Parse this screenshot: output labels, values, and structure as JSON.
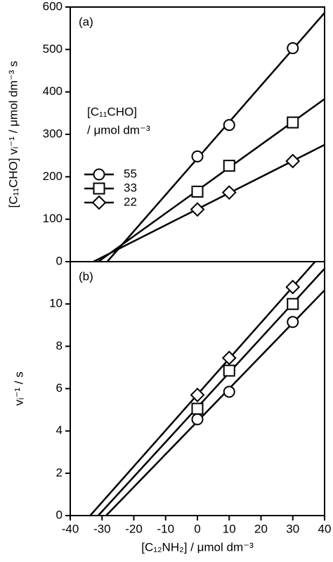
{
  "chart_data": [
    {
      "type": "scatter",
      "panel_label": "(a)",
      "ylabel": "[C₁₁CHO] vᵢ⁻¹ / μmol dm⁻³ s",
      "legend_title": "[C₁₁CHO]",
      "legend_subtitle": "/ μmol dm⁻³",
      "x": [
        0,
        10,
        30
      ],
      "xlim": [
        -40,
        40
      ],
      "ylim": [
        0,
        600
      ],
      "yticks": [
        0,
        100,
        200,
        300,
        400,
        500,
        600
      ],
      "series": [
        {
          "name": "55",
          "marker": "circle",
          "color": "#000000",
          "values": [
            248,
            322,
            503
          ]
        },
        {
          "name": "33",
          "marker": "square",
          "color": "#000000",
          "values": [
            165,
            226,
            328
          ]
        },
        {
          "name": "22",
          "marker": "diamond",
          "color": "#000000",
          "values": [
            123,
            163,
            237
          ]
        }
      ]
    },
    {
      "type": "scatter",
      "panel_label": "(b)",
      "ylabel": "vᵢ⁻¹ / s",
      "xlabel": "[C₁₂NH₂] / μmol dm⁻³",
      "x": [
        0,
        10,
        30
      ],
      "xlim": [
        -40,
        40
      ],
      "xticks": [
        -40,
        -30,
        -20,
        -10,
        0,
        10,
        20,
        30,
        40
      ],
      "ylim": [
        0,
        12
      ],
      "yticks": [
        0,
        2,
        4,
        6,
        8,
        10
      ],
      "series": [
        {
          "marker": "circle",
          "color": "#000000",
          "values": [
            4.55,
            5.85,
            9.15
          ]
        },
        {
          "marker": "square",
          "color": "#000000",
          "values": [
            5.05,
            6.85,
            10.0
          ]
        },
        {
          "marker": "diamond",
          "color": "#000000",
          "values": [
            5.7,
            7.45,
            10.8
          ]
        }
      ]
    }
  ]
}
